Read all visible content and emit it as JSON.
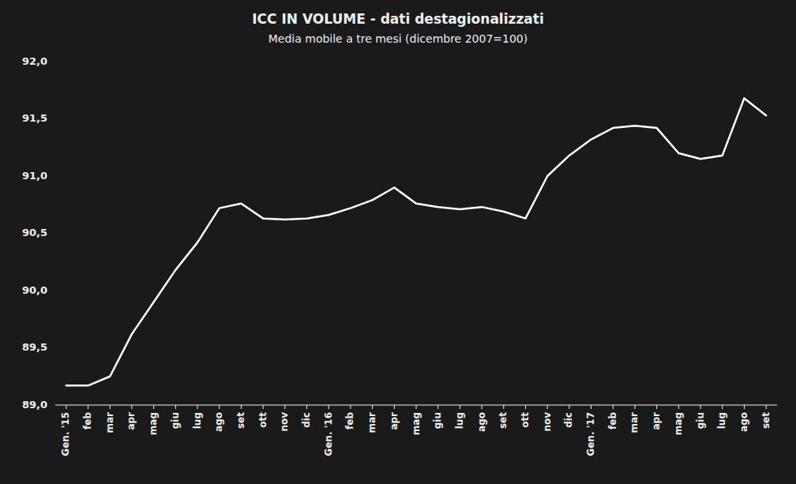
{
  "chart_data": {
    "type": "line",
    "title": "ICC IN VOLUME - dati destagionalizzati",
    "subtitle": "Media mobile a tre mesi (dicembre 2007=100)",
    "categories": [
      "Gen. '15",
      "feb",
      "mar",
      "apr",
      "mag",
      "giu",
      "lug",
      "ago",
      "set",
      "ott",
      "nov",
      "dic",
      "Gen. '16",
      "feb",
      "mar",
      "apr",
      "mag",
      "giu",
      "lug",
      "ago",
      "set",
      "ott",
      "nov",
      "dic",
      "Gen. '17",
      "feb",
      "mar",
      "apr",
      "mag",
      "giu",
      "lug",
      "ago",
      "set"
    ],
    "values": [
      89.17,
      89.17,
      89.25,
      89.62,
      89.9,
      90.18,
      90.42,
      90.72,
      90.76,
      90.63,
      90.62,
      90.63,
      90.66,
      90.72,
      90.79,
      90.9,
      90.76,
      90.73,
      90.71,
      90.73,
      90.69,
      90.63,
      91.0,
      91.18,
      91.32,
      91.42,
      91.44,
      91.42,
      91.2,
      91.15,
      91.18,
      91.68,
      91.53
    ],
    "color": "#ffffff",
    "ylim": [
      89.0,
      92.0
    ],
    "yticks": [
      {
        "value": 89.0,
        "label": "89,0"
      },
      {
        "value": 89.5,
        "label": "89,5"
      },
      {
        "value": 90.0,
        "label": "90,0"
      },
      {
        "value": 90.5,
        "label": "90,5"
      },
      {
        "value": 91.0,
        "label": "91,0"
      },
      {
        "value": 91.5,
        "label": "91,5"
      },
      {
        "value": 92.0,
        "label": "92,0"
      }
    ],
    "grid": false
  }
}
